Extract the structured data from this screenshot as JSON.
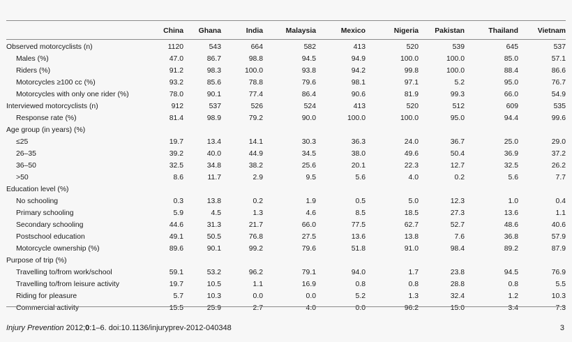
{
  "table": {
    "columns": [
      "China",
      "Ghana",
      "India",
      "Malaysia",
      "Mexico",
      "Nigeria",
      "Pakistan",
      "Thailand",
      "Vietnam"
    ],
    "rows": [
      {
        "label": "Observed motorcyclists (n)",
        "indent": false,
        "values": [
          "1120",
          "543",
          "664",
          "582",
          "413",
          "520",
          "539",
          "645",
          "537"
        ]
      },
      {
        "label": "Males (%)",
        "indent": true,
        "values": [
          "47.0",
          "86.7",
          "98.8",
          "94.5",
          "94.9",
          "100.0",
          "100.0",
          "85.0",
          "57.1"
        ]
      },
      {
        "label": "Riders (%)",
        "indent": true,
        "values": [
          "91.2",
          "98.3",
          "100.0",
          "93.8",
          "94.2",
          "99.8",
          "100.0",
          "88.4",
          "86.6"
        ]
      },
      {
        "label": "Motorcycles ≥100 cc (%)",
        "indent": true,
        "values": [
          "93.2",
          "85.6",
          "78.8",
          "79.6",
          "98.1",
          "97.1",
          "5.2",
          "95.0",
          "76.7"
        ]
      },
      {
        "label": "Motorcycles with only one rider (%)",
        "indent": true,
        "values": [
          "78.0",
          "90.1",
          "77.4",
          "86.4",
          "90.6",
          "81.9",
          "99.3",
          "66.0",
          "54.9"
        ]
      },
      {
        "label": "Interviewed motorcyclists (n)",
        "indent": false,
        "values": [
          "912",
          "537",
          "526",
          "524",
          "413",
          "520",
          "512",
          "609",
          "535"
        ]
      },
      {
        "label": "Response rate (%)",
        "indent": true,
        "values": [
          "81.4",
          "98.9",
          "79.2",
          "90.0",
          "100.0",
          "100.0",
          "95.0",
          "94.4",
          "99.6"
        ]
      },
      {
        "label": "Age group (in years) (%)",
        "indent": false,
        "values": [
          "",
          "",
          "",
          "",
          "",
          "",
          "",
          "",
          ""
        ]
      },
      {
        "label": "≤25",
        "indent": true,
        "values": [
          "19.7",
          "13.4",
          "14.1",
          "30.3",
          "36.3",
          "24.0",
          "36.7",
          "25.0",
          "29.0"
        ]
      },
      {
        "label": "26–35",
        "indent": true,
        "values": [
          "39.2",
          "40.0",
          "44.9",
          "34.5",
          "38.0",
          "49.6",
          "50.4",
          "36.9",
          "37.2"
        ]
      },
      {
        "label": "36–50",
        "indent": true,
        "values": [
          "32.5",
          "34.8",
          "38.2",
          "25.6",
          "20.1",
          "22.3",
          "12.7",
          "32.5",
          "26.2"
        ]
      },
      {
        "label": ">50",
        "indent": true,
        "values": [
          "8.6",
          "11.7",
          "2.9",
          "9.5",
          "5.6",
          "4.0",
          "0.2",
          "5.6",
          "7.7"
        ]
      },
      {
        "label": "Education level (%)",
        "indent": false,
        "values": [
          "",
          "",
          "",
          "",
          "",
          "",
          "",
          "",
          ""
        ]
      },
      {
        "label": "No schooling",
        "indent": true,
        "values": [
          "0.3",
          "13.8",
          "0.2",
          "1.9",
          "0.5",
          "5.0",
          "12.3",
          "1.0",
          "0.4"
        ]
      },
      {
        "label": "Primary schooling",
        "indent": true,
        "values": [
          "5.9",
          "4.5",
          "1.3",
          "4.6",
          "8.5",
          "18.5",
          "27.3",
          "13.6",
          "1.1"
        ]
      },
      {
        "label": "Secondary schooling",
        "indent": true,
        "values": [
          "44.6",
          "31.3",
          "21.7",
          "66.0",
          "77.5",
          "62.7",
          "52.7",
          "48.6",
          "40.6"
        ]
      },
      {
        "label": "Postschool education",
        "indent": true,
        "values": [
          "49.1",
          "50.5",
          "76.8",
          "27.5",
          "13.6",
          "13.8",
          "7.6",
          "36.8",
          "57.9"
        ]
      },
      {
        "label": "Motorcycle ownership (%)",
        "indent": true,
        "values": [
          "89.6",
          "90.1",
          "99.2",
          "79.6",
          "51.8",
          "91.0",
          "98.4",
          "89.2",
          "87.9"
        ]
      },
      {
        "label": "Purpose of trip (%)",
        "indent": false,
        "values": [
          "",
          "",
          "",
          "",
          "",
          "",
          "",
          "",
          ""
        ]
      },
      {
        "label": "Travelling to/from work/school",
        "indent": true,
        "values": [
          "59.1",
          "53.2",
          "96.2",
          "79.1",
          "94.0",
          "1.7",
          "23.8",
          "94.5",
          "76.9"
        ]
      },
      {
        "label": "Travelling to/from leisure activity",
        "indent": true,
        "values": [
          "19.7",
          "10.5",
          "1.1",
          "16.9",
          "0.8",
          "0.8",
          "28.8",
          "0.8",
          "5.5"
        ]
      },
      {
        "label": "Riding for pleasure",
        "indent": true,
        "values": [
          "5.7",
          "10.3",
          "0.0",
          "0.0",
          "5.2",
          "1.3",
          "32.4",
          "1.2",
          "10.3"
        ]
      },
      {
        "label": "Commercial activity",
        "indent": true,
        "values": [
          "15.5",
          "25.9",
          "2.7",
          "4.0",
          "0.0",
          "96.2",
          "15.0",
          "3.4",
          "7.3"
        ]
      }
    ]
  },
  "footer": {
    "journal": "Injury Prevention",
    "year": " 2012;",
    "volume": "0",
    "pages_doi": ":1–6. doi:10.1136/injuryprev-2012-040348",
    "page_number": "3"
  }
}
